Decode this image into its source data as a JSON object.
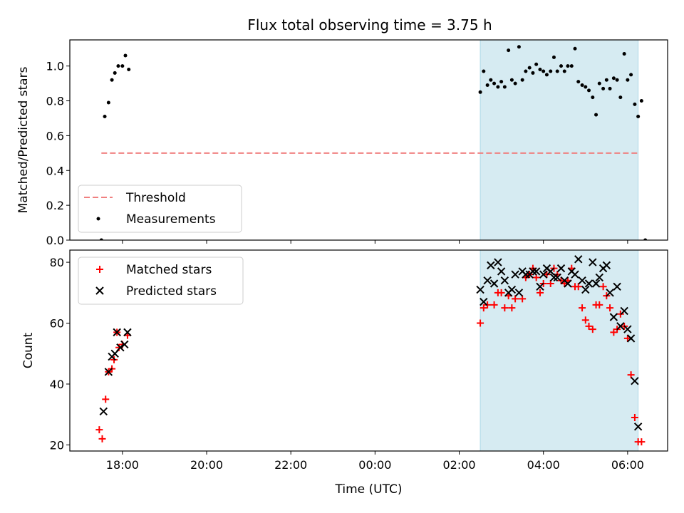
{
  "figure": {
    "title": "Flux total observing time = 3.75 h"
  },
  "colors": {
    "threshold": "#f08080",
    "measurements": "#000000",
    "matched": "#ff0000",
    "predicted": "#000000",
    "observing_window": "#add8e6"
  },
  "chart_data": [
    {
      "type": "scatter",
      "panel": "top",
      "xlabel": "",
      "ylabel": "Matched/Predicted stars",
      "x_unit": "hours since 00:00 UTC of first night",
      "xlim": [
        16.75,
        30.95
      ],
      "ylim": [
        0.0,
        1.15
      ],
      "yticks": [
        0.0,
        0.2,
        0.4,
        0.6,
        0.8,
        1.0
      ],
      "ytick_labels": [
        "0.0",
        "0.2",
        "0.4",
        "0.6",
        "0.8",
        "1.0"
      ],
      "observing_window": {
        "start": 26.5,
        "end": 30.25
      },
      "legend": {
        "position": "lower-left",
        "entries": [
          "Threshold",
          "Measurements"
        ]
      },
      "threshold": {
        "name": "Threshold",
        "value": 0.5,
        "x_range": [
          17.5,
          30.25
        ],
        "style": "dashed"
      },
      "series": [
        {
          "name": "Measurements",
          "marker": "dot",
          "points": [
            [
              17.5,
              0.0
            ],
            [
              17.58,
              0.71
            ],
            [
              17.67,
              0.79
            ],
            [
              17.75,
              0.92
            ],
            [
              17.82,
              0.96
            ],
            [
              17.9,
              1.0
            ],
            [
              18.0,
              1.0
            ],
            [
              18.07,
              1.06
            ],
            [
              18.15,
              0.98
            ],
            [
              26.5,
              0.85
            ],
            [
              26.58,
              0.97
            ],
            [
              26.67,
              0.89
            ],
            [
              26.75,
              0.92
            ],
            [
              26.83,
              0.9
            ],
            [
              26.92,
              0.88
            ],
            [
              27.0,
              0.91
            ],
            [
              27.08,
              0.88
            ],
            [
              27.17,
              1.09
            ],
            [
              27.25,
              0.92
            ],
            [
              27.33,
              0.9
            ],
            [
              27.42,
              1.11
            ],
            [
              27.5,
              0.92
            ],
            [
              27.58,
              0.97
            ],
            [
              27.67,
              0.99
            ],
            [
              27.75,
              0.96
            ],
            [
              27.83,
              1.01
            ],
            [
              27.92,
              0.98
            ],
            [
              28.0,
              0.97
            ],
            [
              28.08,
              0.95
            ],
            [
              28.17,
              0.97
            ],
            [
              28.25,
              1.05
            ],
            [
              28.33,
              0.97
            ],
            [
              28.42,
              1.0
            ],
            [
              28.5,
              0.97
            ],
            [
              28.58,
              1.0
            ],
            [
              28.67,
              1.0
            ],
            [
              28.75,
              1.1
            ],
            [
              28.83,
              0.91
            ],
            [
              28.92,
              0.89
            ],
            [
              29.0,
              0.88
            ],
            [
              29.08,
              0.86
            ],
            [
              29.17,
              0.82
            ],
            [
              29.25,
              0.72
            ],
            [
              29.33,
              0.9
            ],
            [
              29.42,
              0.87
            ],
            [
              29.5,
              0.92
            ],
            [
              29.58,
              0.87
            ],
            [
              29.67,
              0.93
            ],
            [
              29.75,
              0.92
            ],
            [
              29.83,
              0.82
            ],
            [
              29.92,
              1.07
            ],
            [
              30.0,
              0.92
            ],
            [
              30.08,
              0.95
            ],
            [
              30.17,
              0.78
            ],
            [
              30.25,
              0.71
            ],
            [
              30.33,
              0.8
            ],
            [
              30.42,
              0.0
            ]
          ]
        }
      ]
    },
    {
      "type": "scatter",
      "panel": "bottom",
      "xlabel": "Time (UTC)",
      "ylabel": "Count",
      "x_unit": "hours since 00:00 UTC of first night",
      "xlim": [
        16.75,
        30.95
      ],
      "ylim": [
        18,
        84
      ],
      "yticks": [
        20,
        40,
        60,
        80
      ],
      "ytick_labels": [
        "20",
        "40",
        "60",
        "80"
      ],
      "xticks": [
        18,
        20,
        22,
        24,
        26,
        28,
        30
      ],
      "xtick_labels": [
        "18:00",
        "20:00",
        "22:00",
        "00:00",
        "02:00",
        "04:00",
        "06:00"
      ],
      "observing_window": {
        "start": 26.5,
        "end": 30.25
      },
      "legend": {
        "position": "upper-left",
        "entries": [
          "Matched stars",
          "Predicted stars"
        ]
      },
      "series": [
        {
          "name": "Matched stars",
          "marker": "plus",
          "points": [
            [
              17.45,
              25
            ],
            [
              17.52,
              22
            ],
            [
              17.6,
              35
            ],
            [
              17.67,
              44
            ],
            [
              17.75,
              45
            ],
            [
              17.8,
              48
            ],
            [
              17.87,
              57
            ],
            [
              17.92,
              52
            ],
            [
              18.0,
              53
            ],
            [
              18.12,
              56
            ],
            [
              26.5,
              60
            ],
            [
              26.58,
              65
            ],
            [
              26.67,
              66
            ],
            [
              26.83,
              66
            ],
            [
              26.92,
              70
            ],
            [
              27.0,
              70
            ],
            [
              27.08,
              65
            ],
            [
              27.17,
              69
            ],
            [
              27.25,
              65
            ],
            [
              27.33,
              68
            ],
            [
              27.5,
              68
            ],
            [
              27.58,
              75
            ],
            [
              27.67,
              76
            ],
            [
              27.75,
              78
            ],
            [
              27.83,
              75
            ],
            [
              27.92,
              70
            ],
            [
              28.0,
              73
            ],
            [
              28.08,
              76
            ],
            [
              28.17,
              73
            ],
            [
              28.25,
              78
            ],
            [
              28.33,
              76
            ],
            [
              28.42,
              74
            ],
            [
              28.5,
              73
            ],
            [
              28.58,
              74
            ],
            [
              28.67,
              78
            ],
            [
              28.75,
              72
            ],
            [
              28.83,
              72
            ],
            [
              28.92,
              65
            ],
            [
              29.0,
              61
            ],
            [
              29.08,
              59
            ],
            [
              29.17,
              58
            ],
            [
              29.25,
              66
            ],
            [
              29.33,
              66
            ],
            [
              29.42,
              72
            ],
            [
              29.5,
              69
            ],
            [
              29.58,
              65
            ],
            [
              29.67,
              57
            ],
            [
              29.75,
              58
            ],
            [
              29.83,
              63
            ],
            [
              29.92,
              59
            ],
            [
              30.0,
              55
            ],
            [
              30.08,
              43
            ],
            [
              30.17,
              29
            ],
            [
              30.25,
              21
            ],
            [
              30.33,
              21
            ]
          ]
        },
        {
          "name": "Predicted stars",
          "marker": "x",
          "points": [
            [
              17.55,
              31
            ],
            [
              17.67,
              44
            ],
            [
              17.75,
              49
            ],
            [
              17.82,
              50
            ],
            [
              17.87,
              57
            ],
            [
              17.95,
              52
            ],
            [
              18.05,
              53
            ],
            [
              18.12,
              57
            ],
            [
              26.5,
              71
            ],
            [
              26.58,
              67
            ],
            [
              26.67,
              74
            ],
            [
              26.75,
              79
            ],
            [
              26.83,
              73
            ],
            [
              26.92,
              80
            ],
            [
              27.0,
              77
            ],
            [
              27.08,
              74
            ],
            [
              27.17,
              70
            ],
            [
              27.25,
              71
            ],
            [
              27.33,
              76
            ],
            [
              27.42,
              70
            ],
            [
              27.5,
              77
            ],
            [
              27.58,
              76
            ],
            [
              27.67,
              76
            ],
            [
              27.75,
              77
            ],
            [
              27.83,
              77
            ],
            [
              27.92,
              72
            ],
            [
              28.0,
              76
            ],
            [
              28.08,
              78
            ],
            [
              28.17,
              77
            ],
            [
              28.25,
              75
            ],
            [
              28.33,
              75
            ],
            [
              28.42,
              78
            ],
            [
              28.5,
              74
            ],
            [
              28.58,
              73
            ],
            [
              28.67,
              77
            ],
            [
              28.75,
              76
            ],
            [
              28.83,
              81
            ],
            [
              28.92,
              74
            ],
            [
              29.0,
              71
            ],
            [
              29.08,
              73
            ],
            [
              29.17,
              80
            ],
            [
              29.25,
              73
            ],
            [
              29.33,
              75
            ],
            [
              29.42,
              78
            ],
            [
              29.5,
              79
            ],
            [
              29.58,
              70
            ],
            [
              29.67,
              62
            ],
            [
              29.75,
              72
            ],
            [
              29.83,
              59
            ],
            [
              29.92,
              64
            ],
            [
              30.0,
              58
            ],
            [
              30.08,
              55
            ],
            [
              30.17,
              41
            ],
            [
              30.25,
              26
            ]
          ]
        }
      ]
    }
  ]
}
